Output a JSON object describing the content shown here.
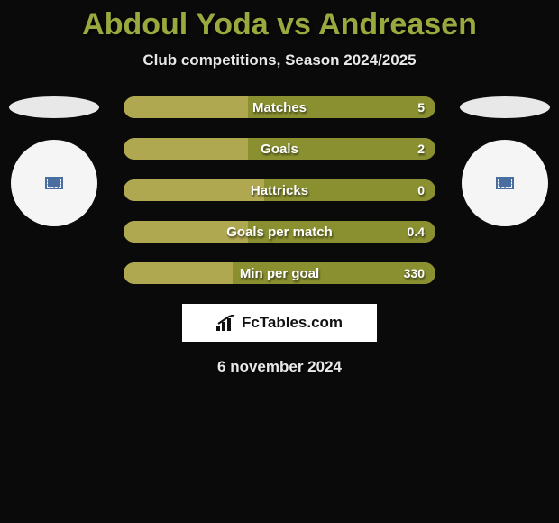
{
  "title": "Abdoul Yoda vs Andreasen",
  "subtitle": "Club competitions, Season 2024/2025",
  "date": "6 november 2024",
  "brand": {
    "text": "FcTables.com"
  },
  "colors": {
    "primary": "#9aa83e",
    "background": "#0a0a0a",
    "bar_track": "#a49a3a",
    "bar_fill_left": "#b0a850",
    "bar_fill_right": "#8a9030"
  },
  "bars": [
    {
      "label": "Matches",
      "left_value": "",
      "right_value": "5",
      "left_pct": 40,
      "right_pct": 60
    },
    {
      "label": "Goals",
      "left_value": "",
      "right_value": "2",
      "left_pct": 40,
      "right_pct": 60
    },
    {
      "label": "Hattricks",
      "left_value": "",
      "right_value": "0",
      "left_pct": 45,
      "right_pct": 55
    },
    {
      "label": "Goals per match",
      "left_value": "",
      "right_value": "0.4",
      "left_pct": 40,
      "right_pct": 60
    },
    {
      "label": "Min per goal",
      "left_value": "",
      "right_value": "330",
      "left_pct": 35,
      "right_pct": 65
    }
  ]
}
